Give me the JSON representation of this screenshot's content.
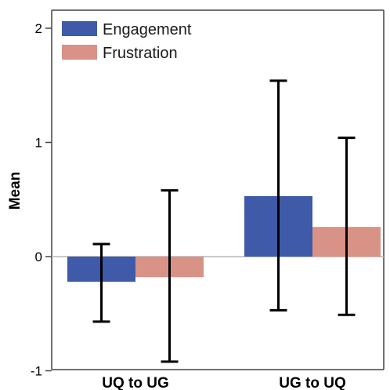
{
  "chart_data": {
    "type": "bar",
    "ylabel": "Mean",
    "categories": [
      "UQ to UG",
      "UG to UQ"
    ],
    "ylim": [
      -1,
      2.2
    ],
    "yticks": [
      -1,
      0,
      1,
      2
    ],
    "grid": false,
    "legend_position": "top-left",
    "series": [
      {
        "name": "Engagement",
        "color": "#3e5aa8",
        "values": [
          -0.22,
          0.53
        ],
        "error_low": [
          -0.57,
          -0.47
        ],
        "error_high": [
          0.11,
          1.54
        ]
      },
      {
        "name": "Frustration",
        "color": "#d99286",
        "values": [
          -0.18,
          0.26
        ],
        "error_low": [
          -0.92,
          -0.51
        ],
        "error_high": [
          0.58,
          1.04
        ]
      }
    ]
  }
}
